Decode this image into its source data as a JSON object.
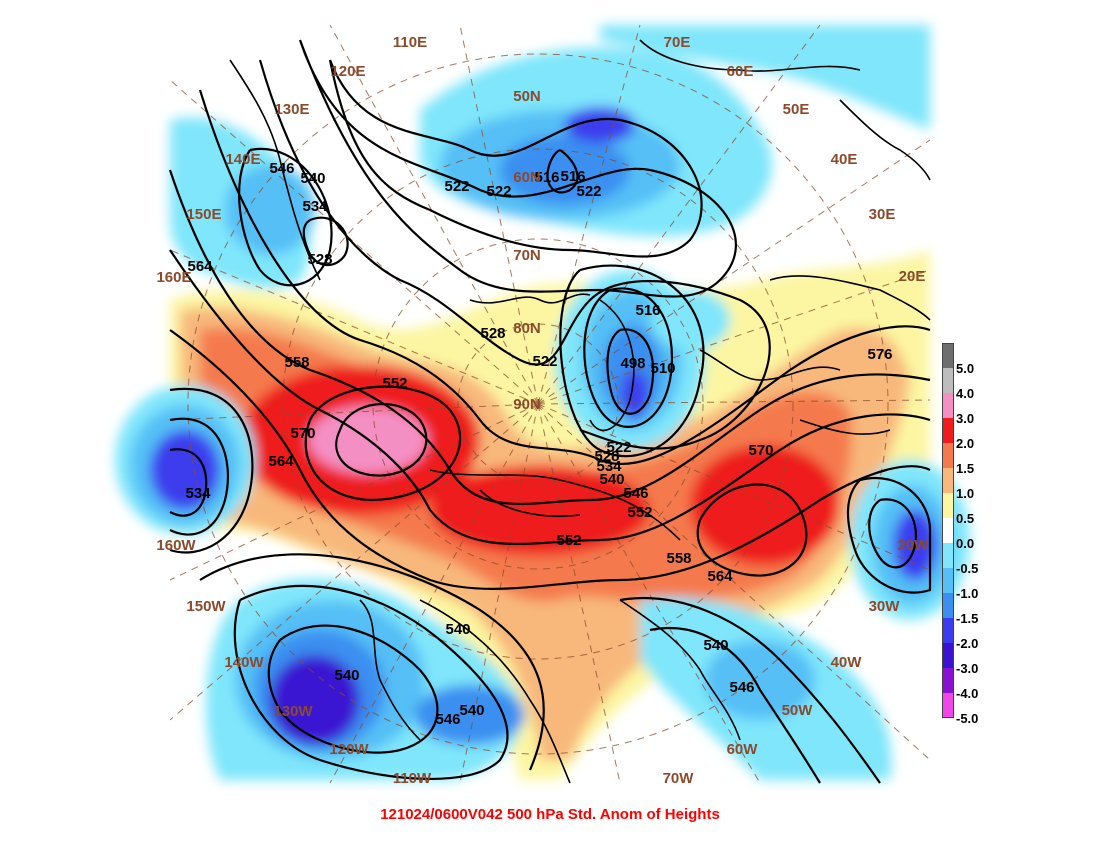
{
  "caption": "121024/0600V042 500 hPa Std. Anom of Heights",
  "colorbar": {
    "levels": [
      {
        "label": "5.0",
        "color": "#6e6e6e"
      },
      {
        "label": "4.0",
        "color": "#bdbdbd"
      },
      {
        "label": "3.0",
        "color": "#f48fc4"
      },
      {
        "label": "2.0",
        "color": "#ee1c1c"
      },
      {
        "label": "1.5",
        "color": "#f47a4e"
      },
      {
        "label": "1.0",
        "color": "#f8b87c"
      },
      {
        "label": "0.5",
        "color": "#fcf6a2"
      },
      {
        "label": "0.0",
        "color": "#ffffff"
      },
      {
        "label": "-0.5",
        "color": "#7fe6fb"
      },
      {
        "label": "-1.0",
        "color": "#55bff6"
      },
      {
        "label": "-1.5",
        "color": "#3b8ff0"
      },
      {
        "label": "-2.0",
        "color": "#3c3cee"
      },
      {
        "label": "-3.0",
        "color": "#3a12d2"
      },
      {
        "label": "-4.0",
        "color": "#8a10d4"
      },
      {
        "label": "-5.0",
        "color": "#f048e8"
      }
    ]
  },
  "geo_labels": {
    "lon_110e": "110E",
    "lon_120e": "120E",
    "lon_130e": "130E",
    "lon_140e": "140E",
    "lon_150e": "150E",
    "lon_160e": "160E",
    "lon_70e": "70E",
    "lon_60e": "60E",
    "lon_50e": "50E",
    "lon_40e": "40E",
    "lon_30e": "30E",
    "lon_20e": "20E",
    "lon_160w": "160W",
    "lon_150w": "150W",
    "lon_140w": "140W",
    "lon_130w": "130W",
    "lon_120w": "120W",
    "lon_110w": "110W",
    "lon_70w": "70W",
    "lon_60w": "60W",
    "lon_50w": "50W",
    "lon_40w": "40W",
    "lon_30w": "30W",
    "lon_20w": "20W",
    "lat_50n": "50N",
    "lat_60n": "60N",
    "lat_70n": "70N",
    "lat_80n": "80N",
    "lat_90n": "90N"
  },
  "contour_labels": {
    "c546_a": "546",
    "c540_a": "540",
    "c534_a": "534",
    "c528_a": "528",
    "c564_a": "564",
    "c522_a": "522",
    "c522_b": "522",
    "c516_a": "516",
    "c516_b": "516",
    "c522_c": "522",
    "c528_b": "528",
    "c522_d": "522",
    "c516_c": "516",
    "c498": "498",
    "c510": "510",
    "c558_a": "558",
    "c552_a": "552",
    "c570_a": "570",
    "c564_b": "564",
    "c534_b": "534",
    "c522_e": "522",
    "c528_c": "528",
    "c534_c": "534",
    "c540_b": "540",
    "c546_b": "546",
    "c552_b": "552",
    "c552_c": "552",
    "c558_b": "558",
    "c564_c": "564",
    "c570_b": "570",
    "c576": "576",
    "c540_c": "540",
    "c540_d": "540",
    "c546_c": "546",
    "c540_e": "540",
    "c540_f": "540",
    "c546_d": "546"
  }
}
